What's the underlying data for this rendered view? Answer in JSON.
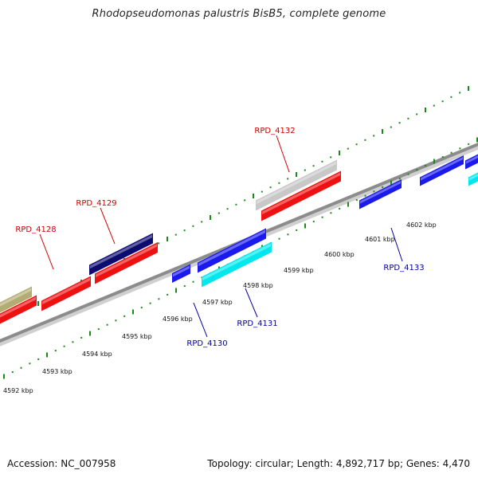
{
  "title": "Rhodopseudomonas palustris BisB5, complete genome",
  "footer": {
    "accession": "Accession: NC_007958",
    "summary": "Topology: circular; Length: 4,892,717 bp; Genes: 4,470"
  },
  "colors": {
    "backbone": "#8c8c8c",
    "tick": "#1a8a1a",
    "label_forward": "#cc0000",
    "label_reverse": "#000099"
  },
  "scale_labels": [
    "4592 kbp",
    "4593 kbp",
    "4594 kbp",
    "4595 kbp",
    "4596 kbp",
    "4597 kbp",
    "4598 kbp",
    "4599 kbp",
    "4600 kbp",
    "4601 kbp",
    "4602 kbp"
  ],
  "features": [
    {
      "name": "olive-feature",
      "color": "#b2ac72"
    },
    {
      "name": "red-feature-1",
      "color": "#ee1111"
    },
    {
      "name": "red-feature-2",
      "color": "#ee1111"
    },
    {
      "name": "red-feature-3",
      "color": "#ee1111"
    },
    {
      "name": "navy-feature",
      "color": "#0c0c70"
    },
    {
      "name": "red-feature-4",
      "color": "#ee1111"
    },
    {
      "name": "gray-feature",
      "color": "#c8c8c8"
    },
    {
      "name": "blue-feature-1",
      "color": "#1a1aee"
    },
    {
      "name": "cyan-feature-1",
      "color": "#00e8ee"
    },
    {
      "name": "blue-feature-2",
      "color": "#1a1aee"
    },
    {
      "name": "blue-feature-3",
      "color": "#1a1aee"
    },
    {
      "name": "blue-feature-4",
      "color": "#1a1aee"
    },
    {
      "name": "blue-feature-5",
      "color": "#1a1aee"
    },
    {
      "name": "cyan-feature-2",
      "color": "#00e8ee"
    }
  ],
  "gene_labels": [
    "RPD_4128",
    "RPD_4129",
    "RPD_4132",
    "RPD_4130",
    "RPD_4131",
    "RPD_4133"
  ]
}
